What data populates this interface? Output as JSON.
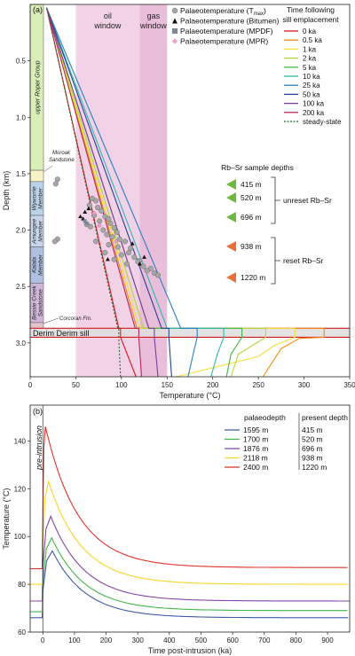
{
  "chart_data": [
    {
      "panel_label": "(a)",
      "type": "line",
      "xlabel": "Temperature (°C)",
      "ylabel": "Depth (km)",
      "xlim": [
        0,
        350
      ],
      "ylim": [
        0,
        3.3
      ],
      "y_inverted": true,
      "xticks": [
        0,
        50,
        100,
        150,
        200,
        250,
        300,
        350
      ],
      "yticks": [
        0.5,
        1.0,
        1.5,
        2.0,
        2.5,
        3.0
      ],
      "windows": [
        {
          "label": "oil window",
          "t_min": 50,
          "t_max": 120,
          "color": "#f1d2e6"
        },
        {
          "label": "gas window",
          "t_min": 120,
          "t_max": 150,
          "color": "#e9bedb"
        }
      ],
      "stratigraphy": [
        {
          "label": "upper Roper Group",
          "top": 0.0,
          "bottom": 1.47,
          "color": "#daeeb8"
        },
        {
          "label": "Moroak Sandstone",
          "top": 1.47,
          "bottom": 1.57,
          "color": "#f7f3c6"
        },
        {
          "label": "Wyworrie Member",
          "top": 1.57,
          "bottom": 1.87,
          "color": "#bcd2e8"
        },
        {
          "label": "Arnungee Member",
          "top": 1.87,
          "bottom": 2.15,
          "color": "#c7d5ea"
        },
        {
          "label": "Kalala Member",
          "top": 2.15,
          "bottom": 2.47,
          "color": "#aebfe0"
        },
        {
          "label": "Bessie Creek Sandstone",
          "top": 2.47,
          "bottom": 2.82,
          "color": "#cfb7d9"
        },
        {
          "label": "Corcoran Fm.",
          "top": 2.82,
          "bottom": 2.87,
          "color": "#e3c4cc"
        }
      ],
      "sill": {
        "label": "Derim Derim sill",
        "top": 2.87,
        "bottom": 2.95
      },
      "legend_markers": [
        {
          "label_main": "Palaeotemperature (T",
          "label_sub": "max",
          "label_tail": ")",
          "marker": "circle",
          "color": "#a6a6a6"
        },
        {
          "label_main": "Palaeotemperature (Bitumen)",
          "label_sub": "",
          "label_tail": "",
          "marker": "triangle",
          "color": "#111111"
        },
        {
          "label_main": "Palaeotemperature (MPDF)",
          "label_sub": "",
          "label_tail": "",
          "marker": "square",
          "color": "#7a8795"
        },
        {
          "label_main": "Palaeotemperature (MPR)",
          "label_sub": "",
          "label_tail": "",
          "marker": "diamond",
          "color": "#e8a0c8"
        }
      ],
      "legend_title_line1": "Time following",
      "legend_title_line2": "sill emplacement",
      "series": [
        {
          "name": "0 ka",
          "color": "#d7191c",
          "dashed": false,
          "surface": [
            18,
            0.03
          ],
          "base": [
            97,
            2.87
          ],
          "inside": 99,
          "below": [
            [
              116,
              3.3
            ]
          ]
        },
        {
          "name": "0.5 ka",
          "color": "#f38a12",
          "dashed": false,
          "surface": [
            18,
            0.03
          ],
          "base": [
            117,
            2.87
          ],
          "inside": 322,
          "below": [
            [
              295,
              2.96
            ],
            [
              275,
              3.05
            ],
            [
              255,
              3.3
            ]
          ]
        },
        {
          "name": "1 ka",
          "color": "#f3df3a",
          "dashed": false,
          "surface": [
            18,
            0.03
          ],
          "base": [
            120,
            2.87
          ],
          "inside": 290,
          "below": [
            [
              268,
              3.02
            ],
            [
              250,
              3.12
            ],
            [
              160,
              3.3
            ]
          ]
        },
        {
          "name": "2 ka",
          "color": "#b0d93b",
          "dashed": false,
          "surface": [
            18,
            0.03
          ],
          "base": [
            124,
            2.87
          ],
          "inside": 258,
          "below": [
            [
              228,
              3.1
            ],
            [
              220,
              3.3
            ]
          ]
        },
        {
          "name": "5 ka",
          "color": "#41b649",
          "dashed": false,
          "surface": [
            18,
            0.03
          ],
          "base": [
            130,
            2.87
          ],
          "inside": 232,
          "below": [
            [
              220,
              3.1
            ],
            [
              215,
              3.3
            ]
          ]
        },
        {
          "name": "10 ka",
          "color": "#2eb8b0",
          "dashed": false,
          "surface": [
            18,
            0.03
          ],
          "base": [
            150,
            2.87
          ],
          "inside": 212,
          "below": [
            [
              205,
              3.1
            ],
            [
              198,
              3.3
            ]
          ]
        },
        {
          "name": "25 ka",
          "color": "#2a7fc4",
          "dashed": false,
          "surface": [
            18,
            0.03
          ],
          "base": [
            165,
            2.87
          ],
          "inside": 183,
          "below": [
            [
              180,
              3.05
            ],
            [
              173,
              3.3
            ]
          ]
        },
        {
          "name": "50 ka",
          "color": "#2a3f93",
          "dashed": false,
          "surface": [
            18,
            0.03
          ],
          "base": [
            144,
            2.87
          ],
          "inside": 152,
          "below": [
            [
              155,
              3.3
            ]
          ]
        },
        {
          "name": "100 ka",
          "color": "#7d3f98",
          "dashed": false,
          "surface": [
            18,
            0.03
          ],
          "base": [
            130,
            2.87
          ],
          "inside": 136,
          "below": [
            [
              140,
              3.3
            ]
          ]
        },
        {
          "name": "200 ka",
          "color": "#b52b63",
          "dashed": false,
          "surface": [
            18,
            0.03
          ],
          "base": [
            115,
            2.87
          ],
          "inside": 119,
          "below": [
            [
              122,
              3.3
            ]
          ]
        },
        {
          "name": "steady-state",
          "color": "#1b6b3a",
          "dashed": true,
          "surface": [
            18,
            0.03
          ],
          "base": [
            96,
            2.87
          ],
          "inside": 97,
          "below": [
            [
              99,
              3.3
            ]
          ]
        }
      ],
      "rbsr_title": "Rb–Sr sample depths",
      "rbsr_samples": [
        {
          "label": "415 m",
          "group": "unreset",
          "color": "#6fb83f"
        },
        {
          "label": "520 m",
          "group": "unreset",
          "color": "#6fb83f"
        },
        {
          "label": "696 m",
          "group": "unreset",
          "color": "#6fb83f"
        },
        {
          "label": "938 m",
          "group": "reset",
          "color": "#e8703a"
        },
        {
          "label": "1220 m",
          "group": "reset",
          "color": "#e8703a"
        }
      ],
      "rbsr_groups": {
        "unreset": "unreset Rb–Sr",
        "reset": "reset Rb–Sr"
      },
      "palaeotemperature_points": {
        "tmax": [
          [
            30,
            1.55
          ],
          [
            28,
            1.59
          ],
          [
            68,
            1.72
          ],
          [
            72,
            1.74
          ],
          [
            65,
            1.78
          ],
          [
            74,
            1.8
          ],
          [
            78,
            1.83
          ],
          [
            70,
            1.87
          ],
          [
            82,
            1.88
          ],
          [
            86,
            1.9
          ],
          [
            76,
            1.92
          ],
          [
            88,
            1.94
          ],
          [
            66,
            1.97
          ],
          [
            92,
            1.98
          ],
          [
            80,
            2.0
          ],
          [
            95,
            2.02
          ],
          [
            84,
            2.04
          ],
          [
            90,
            2.06
          ],
          [
            98,
            2.08
          ],
          [
            72,
            2.1
          ],
          [
            104,
            2.1
          ],
          [
            86,
            2.13
          ],
          [
            96,
            2.15
          ],
          [
            110,
            2.16
          ],
          [
            82,
            2.2
          ],
          [
            100,
            2.22
          ],
          [
            114,
            2.24
          ],
          [
            92,
            2.26
          ],
          [
            120,
            2.27
          ],
          [
            106,
            2.3
          ],
          [
            124,
            2.32
          ],
          [
            132,
            2.34
          ],
          [
            128,
            2.36
          ],
          [
            136,
            2.38
          ],
          [
            140,
            2.4
          ],
          [
            118,
            2.28
          ],
          [
            62,
            1.95
          ],
          [
            30,
            2.08
          ],
          [
            27,
            2.1
          ],
          [
            108,
            2.2
          ]
        ],
        "bitumen": [
          [
            55,
            1.88
          ],
          [
            58,
            1.9
          ],
          [
            60,
            1.84
          ],
          [
            64,
            1.81
          ],
          [
            85,
            2.26
          ],
          [
            120,
            2.3
          ],
          [
            125,
            2.24
          ],
          [
            112,
            2.12
          ]
        ],
        "mpdf": [
          [
            60,
            1.92
          ],
          [
            62,
            1.94
          ]
        ],
        "mpr": [
          [
            70,
            1.85
          ],
          [
            76,
            1.96
          ],
          [
            94,
            2.1
          ]
        ]
      }
    },
    {
      "panel_label": "(b)",
      "type": "line",
      "xlabel": "Time post-intrusion (ka)",
      "ylabel": "Temperature (°C)",
      "xlim": [
        -40,
        970
      ],
      "ylim": [
        60,
        155
      ],
      "xticks": [
        0,
        100,
        200,
        300,
        400,
        500,
        600,
        700,
        800,
        900
      ],
      "yticks": [
        60,
        80,
        100,
        120,
        140
      ],
      "annotation": "pre-intrusion",
      "legend_header": [
        "palaeodepth",
        "present depth"
      ],
      "series": [
        {
          "name": "1595 m",
          "present_depth": "415 m",
          "color": "#3f5aa8",
          "base": 66,
          "peak": 94,
          "peak_time": 30,
          "final": 66
        },
        {
          "name": "1700 m",
          "present_depth": "520 m",
          "color": "#41b649",
          "base": 68.5,
          "peak": 99.5,
          "peak_time": 28,
          "final": 69
        },
        {
          "name": "1876 m",
          "present_depth": "696 m",
          "color": "#8a44a8",
          "base": 73,
          "peak": 108.5,
          "peak_time": 25,
          "final": 73
        },
        {
          "name": "2118 m",
          "present_depth": "938 m",
          "color": "#f6d523",
          "base": 80,
          "peak": 123,
          "peak_time": 18,
          "final": 80
        },
        {
          "name": "2400 m",
          "present_depth": "1220 m",
          "color": "#e0322a",
          "base": 86.5,
          "peak": 146,
          "peak_time": 8,
          "final": 87
        }
      ]
    }
  ]
}
